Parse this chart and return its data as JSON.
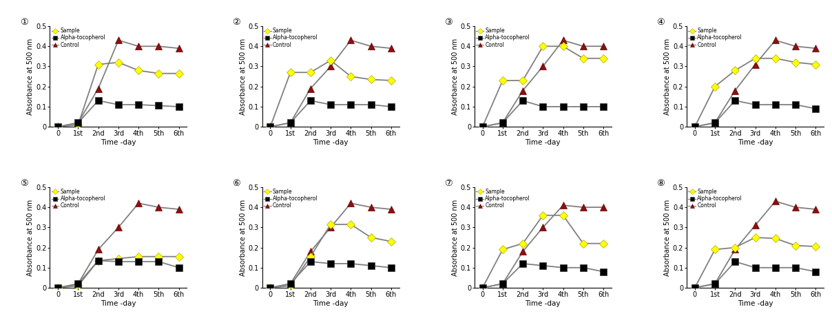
{
  "x_labels": [
    "0",
    "1st",
    "2nd",
    "3rd",
    "4th",
    "5th",
    "6th"
  ],
  "x_values": [
    0,
    1,
    2,
    3,
    4,
    5,
    6
  ],
  "sample_color": "#FFFF00",
  "alpha_color": "#000000",
  "control_color": "#8B1010",
  "line_color": "#808080",
  "panels": [
    {
      "label": "①",
      "sample": [
        0.0,
        0.01,
        0.31,
        0.32,
        0.28,
        0.265,
        0.265
      ],
      "alpha": [
        0.0,
        0.02,
        0.13,
        0.11,
        0.11,
        0.105,
        0.1
      ],
      "control": [
        0.0,
        0.02,
        0.19,
        0.43,
        0.4,
        0.4,
        0.39
      ]
    },
    {
      "label": "②",
      "sample": [
        0.0,
        0.27,
        0.27,
        0.33,
        0.25,
        0.235,
        0.23
      ],
      "alpha": [
        0.0,
        0.02,
        0.13,
        0.11,
        0.11,
        0.11,
        0.1
      ],
      "control": [
        0.0,
        0.02,
        0.19,
        0.3,
        0.43,
        0.4,
        0.39
      ]
    },
    {
      "label": "③",
      "sample": [
        0.0,
        0.23,
        0.23,
        0.4,
        0.4,
        0.34,
        0.34
      ],
      "alpha": [
        0.0,
        0.02,
        0.13,
        0.1,
        0.1,
        0.1,
        0.1
      ],
      "control": [
        0.0,
        0.02,
        0.18,
        0.3,
        0.43,
        0.4,
        0.4
      ]
    },
    {
      "label": "④",
      "sample": [
        0.0,
        0.2,
        0.28,
        0.34,
        0.34,
        0.32,
        0.31
      ],
      "alpha": [
        0.0,
        0.02,
        0.13,
        0.11,
        0.11,
        0.11,
        0.09
      ],
      "control": [
        0.0,
        0.02,
        0.18,
        0.31,
        0.43,
        0.4,
        0.39
      ]
    },
    {
      "label": "⑤",
      "sample": [
        0.0,
        0.01,
        0.135,
        0.145,
        0.155,
        0.155,
        0.155
      ],
      "alpha": [
        0.0,
        0.02,
        0.135,
        0.13,
        0.13,
        0.13,
        0.1
      ],
      "control": [
        0.0,
        0.02,
        0.19,
        0.3,
        0.42,
        0.4,
        0.39
      ]
    },
    {
      "label": "⑥",
      "sample": [
        0.0,
        0.01,
        0.155,
        0.315,
        0.315,
        0.25,
        0.23
      ],
      "alpha": [
        0.0,
        0.02,
        0.13,
        0.12,
        0.12,
        0.11,
        0.1
      ],
      "control": [
        0.0,
        0.02,
        0.18,
        0.3,
        0.42,
        0.4,
        0.39
      ]
    },
    {
      "label": "⑦",
      "sample": [
        0.0,
        0.19,
        0.22,
        0.36,
        0.36,
        0.22,
        0.22
      ],
      "alpha": [
        0.0,
        0.02,
        0.12,
        0.11,
        0.1,
        0.1,
        0.08
      ],
      "control": [
        0.0,
        0.02,
        0.18,
        0.3,
        0.41,
        0.4,
        0.4
      ]
    },
    {
      "label": "⑧",
      "sample": [
        0.0,
        0.19,
        0.2,
        0.25,
        0.245,
        0.21,
        0.205
      ],
      "alpha": [
        0.0,
        0.02,
        0.13,
        0.1,
        0.1,
        0.1,
        0.08
      ],
      "control": [
        0.0,
        0.02,
        0.19,
        0.31,
        0.43,
        0.4,
        0.39
      ]
    }
  ],
  "ylabel": "Absorbance at 500 nm",
  "xlabel": "Time -day",
  "ylim": [
    0,
    0.5
  ],
  "yticks": [
    0,
    0.1,
    0.2,
    0.3,
    0.4,
    0.5
  ],
  "ytick_labels": [
    "0",
    "0.1",
    "0.2",
    "0.3",
    "0.4",
    "0.5"
  ]
}
